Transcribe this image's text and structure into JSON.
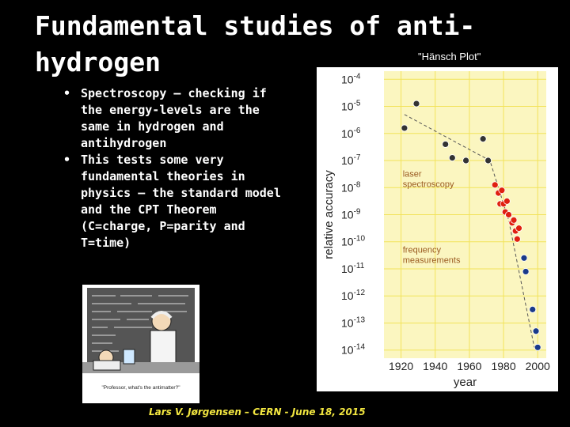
{
  "slide": {
    "title": "Fundamental studies of anti-hydrogen",
    "caption": "\"Hänsch Plot\"",
    "footer": "Lars V. Jørgensen – CERN - June 18, 2015",
    "bullets": [
      "Spectroscopy – checking if the energy-levels are the same in hydrogen and antihydrogen",
      "This tests some very fundamental theories in physics – the standard model and the CPT Theorem (C=charge, P=parity and T=time)"
    ],
    "cartoon_caption": "\"Professor, what's the antimatter?\""
  },
  "colors": {
    "background": "#000000",
    "text": "#ffffff",
    "footer": "#f2e640",
    "plot_background": "#fbf6c0",
    "grid": "#f2e35a",
    "laser_points": "#e02010",
    "frequency_points": "#1a3a8a",
    "early_points": "#333333",
    "trend_line": "#555555",
    "annotation_text": "#9a5a20"
  },
  "chart_data": {
    "type": "scatter",
    "title": "",
    "xlabel": "year",
    "ylabel": "relative accuracy",
    "xlim": [
      1910,
      2005
    ],
    "ylog": true,
    "ylim_exponent": [
      -14.3,
      -3.7
    ],
    "grid": true,
    "x_ticks": [
      1920,
      1940,
      1960,
      1980,
      2000
    ],
    "y_tick_exponents": [
      -4,
      -5,
      -6,
      -7,
      -8,
      -9,
      -10,
      -11,
      -12,
      -13,
      -14
    ],
    "y_ticks": [
      "10-4",
      "10-5",
      "10-6",
      "10-7",
      "10-8",
      "10-9",
      "10-10",
      "10-11",
      "10-12",
      "10-13",
      "10-14"
    ],
    "annotations": [
      {
        "text": "laser spectroscopy",
        "x": 1921,
        "y_exponent": -7.6
      },
      {
        "text": "frequency measurements",
        "x": 1921,
        "y_exponent": -10.4
      }
    ],
    "trend_line": {
      "x": [
        1922,
        1972,
        1983,
        1998
      ],
      "y_exponent": [
        -5.3,
        -7.0,
        -9.2,
        -13.9
      ]
    },
    "series": [
      {
        "group": "early",
        "points": [
          {
            "x": 1922,
            "y_exponent": -5.8
          },
          {
            "x": 1929,
            "y_exponent": -4.9
          },
          {
            "x": 1946,
            "y_exponent": -6.4
          },
          {
            "x": 1950,
            "y_exponent": -6.9
          },
          {
            "x": 1958,
            "y_exponent": -7.0
          },
          {
            "x": 1968,
            "y_exponent": -6.2
          },
          {
            "x": 1971,
            "y_exponent": -7.0
          }
        ]
      },
      {
        "group": "laser",
        "points": [
          {
            "x": 1975,
            "y_exponent": -7.9
          },
          {
            "x": 1977,
            "y_exponent": -8.2
          },
          {
            "x": 1978,
            "y_exponent": -8.6
          },
          {
            "x": 1979,
            "y_exponent": -8.1
          },
          {
            "x": 1980,
            "y_exponent": -8.6
          },
          {
            "x": 1981,
            "y_exponent": -8.9
          },
          {
            "x": 1982,
            "y_exponent": -8.5
          },
          {
            "x": 1983,
            "y_exponent": -9.0
          },
          {
            "x": 1985,
            "y_exponent": -9.3
          },
          {
            "x": 1986,
            "y_exponent": -9.2
          },
          {
            "x": 1987,
            "y_exponent": -9.6
          },
          {
            "x": 1988,
            "y_exponent": -9.9
          },
          {
            "x": 1989,
            "y_exponent": -9.5
          }
        ]
      },
      {
        "group": "frequency",
        "points": [
          {
            "x": 1992,
            "y_exponent": -10.6
          },
          {
            "x": 1993,
            "y_exponent": -11.1
          },
          {
            "x": 1997,
            "y_exponent": -12.5
          },
          {
            "x": 1999,
            "y_exponent": -13.3
          },
          {
            "x": 2000,
            "y_exponent": -13.9
          }
        ]
      }
    ]
  }
}
